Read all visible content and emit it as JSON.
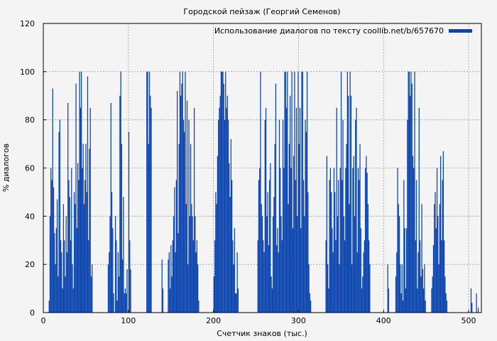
{
  "chart_data": {
    "type": "bar",
    "title": "Городской пейзаж (Георгий Семенов)",
    "xlabel": "Счетчик знаков (тыс.)",
    "ylabel": "% диалогов",
    "xlim": [
      0,
      515
    ],
    "ylim": [
      0,
      120
    ],
    "xticks": [
      0,
      100,
      200,
      300,
      400,
      500
    ],
    "yticks": [
      0,
      20,
      40,
      60,
      80,
      100,
      120
    ],
    "grid": true,
    "legend_position": "top-right",
    "bar_color": "#0b44ae",
    "series": [
      {
        "name": "Использование диалогов по тексту coollib.net/b/657670",
        "values": [
          0,
          0,
          0,
          0,
          0,
          0,
          5,
          40,
          60,
          55,
          93,
          52,
          33,
          20,
          35,
          47,
          15,
          75,
          80,
          30,
          25,
          10,
          45,
          30,
          15,
          40,
          25,
          87,
          55,
          48,
          30,
          60,
          20,
          10,
          50,
          45,
          95,
          35,
          62,
          55,
          100,
          85,
          100,
          60,
          70,
          45,
          55,
          70,
          50,
          98,
          30,
          68,
          85,
          15,
          20,
          0,
          0,
          0,
          0,
          0,
          0,
          0,
          0,
          0,
          0,
          0,
          0,
          0,
          0,
          0,
          0,
          0,
          20,
          25,
          40,
          87,
          50,
          35,
          8,
          0,
          40,
          30,
          5,
          25,
          15,
          90,
          100,
          70,
          22,
          48,
          8,
          10,
          8,
          18,
          0,
          75,
          30,
          18,
          0,
          0,
          0,
          0,
          0,
          0,
          0,
          0,
          0,
          0,
          0,
          0,
          0,
          0,
          0,
          0,
          0,
          100,
          100,
          70,
          100,
          90,
          85,
          0,
          0,
          0,
          0,
          0,
          0,
          0,
          0,
          0,
          0,
          0,
          22,
          10,
          0,
          0,
          0,
          0,
          0,
          22,
          25,
          10,
          28,
          15,
          30,
          40,
          52,
          25,
          55,
          92,
          33,
          70,
          100,
          90,
          95,
          100,
          80,
          75,
          100,
          45,
          88,
          20,
          80,
          40,
          70,
          45,
          40,
          30,
          85,
          40,
          25,
          30,
          20,
          5,
          0,
          0,
          0,
          0,
          0,
          0,
          0,
          0,
          0,
          0,
          0,
          0,
          0,
          0,
          0,
          0,
          15,
          30,
          50,
          45,
          65,
          80,
          85,
          90,
          100,
          100,
          100,
          95,
          80,
          100,
          85,
          90,
          80,
          62,
          48,
          72,
          55,
          30,
          20,
          35,
          8,
          8,
          25,
          10,
          0,
          0,
          0,
          0,
          0,
          0,
          0,
          0,
          0,
          0,
          0,
          0,
          0,
          0,
          0,
          0,
          0,
          0,
          0,
          0,
          0,
          30,
          55,
          60,
          100,
          45,
          40,
          30,
          25,
          80,
          85,
          40,
          50,
          28,
          55,
          62,
          15,
          10,
          40,
          48,
          70,
          95,
          28,
          35,
          25,
          80,
          60,
          40,
          30,
          80,
          60,
          100,
          100,
          85,
          100,
          45,
          70,
          90,
          60,
          100,
          35,
          65,
          100,
          55,
          85,
          40,
          100,
          70,
          85,
          35,
          100,
          100,
          55,
          40,
          80,
          75,
          100,
          50,
          20,
          8,
          5,
          0,
          0,
          0,
          0,
          0,
          0,
          0,
          0,
          0,
          0,
          0,
          0,
          0,
          0,
          0,
          0,
          30,
          65,
          20,
          10,
          55,
          60,
          50,
          35,
          25,
          60,
          50,
          30,
          85,
          40,
          55,
          20,
          60,
          100,
          55,
          80,
          40,
          30,
          60,
          70,
          100,
          90,
          45,
          100,
          90,
          20,
          60,
          65,
          40,
          80,
          85,
          25,
          60,
          55,
          70,
          35,
          10,
          15,
          25,
          30,
          60,
          65,
          58,
          45,
          30,
          20,
          0,
          0,
          0,
          0,
          0,
          0,
          0,
          0,
          0,
          0,
          0,
          0,
          0,
          0,
          0,
          0,
          0,
          0,
          0,
          20,
          10,
          0,
          0,
          0,
          0,
          0,
          0,
          0,
          15,
          25,
          60,
          45,
          40,
          20,
          8,
          20,
          5,
          55,
          35,
          10,
          35,
          80,
          100,
          100,
          90,
          100,
          95,
          65,
          60,
          100,
          30,
          55,
          10,
          25,
          85,
          30,
          15,
          45,
          18,
          10,
          20,
          5,
          0,
          0,
          0,
          0,
          0,
          0,
          10,
          15,
          28,
          45,
          50,
          35,
          60,
          40,
          20,
          45,
          65,
          30,
          55,
          67,
          30,
          15,
          8,
          5,
          0,
          0,
          0,
          0,
          0,
          0,
          0,
          0,
          0,
          0,
          0,
          0,
          0,
          0,
          0,
          0,
          0,
          0,
          0,
          0,
          0,
          0,
          0,
          0,
          0,
          0,
          10,
          4,
          0,
          0,
          0,
          0,
          8,
          0,
          2,
          0,
          0,
          0
        ]
      }
    ]
  }
}
